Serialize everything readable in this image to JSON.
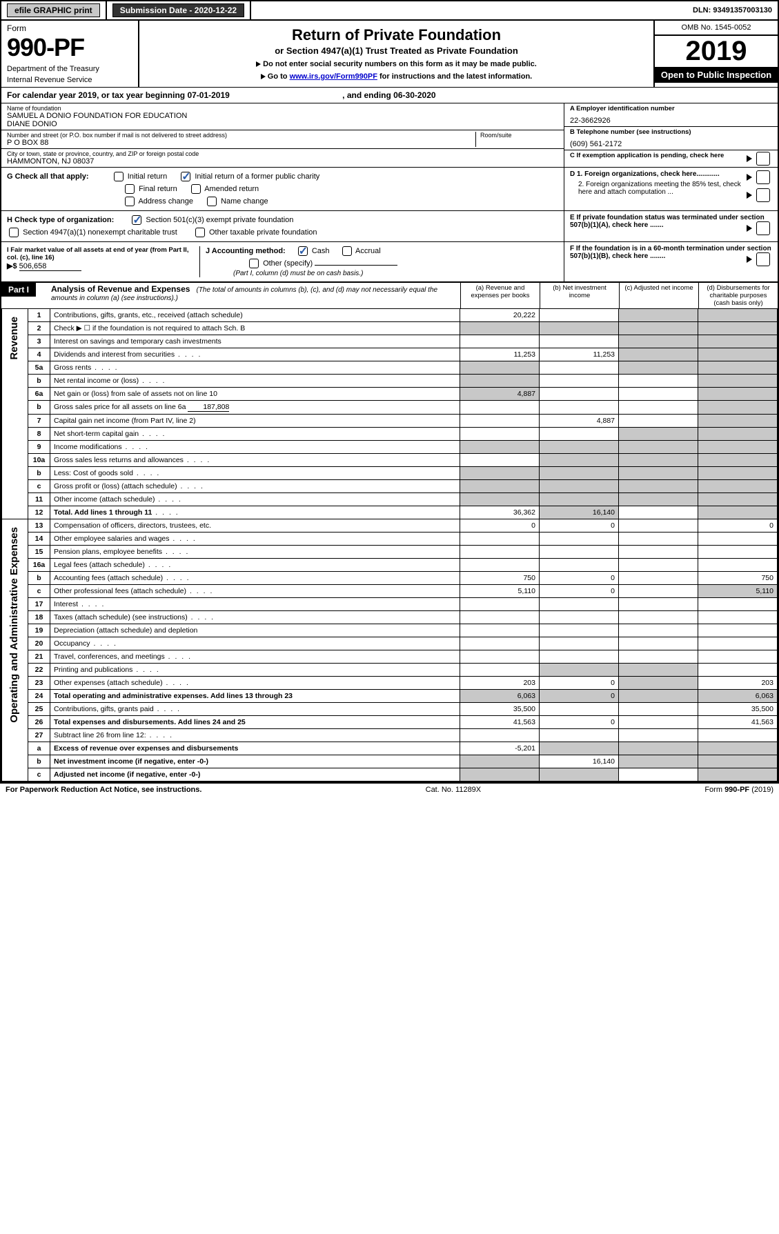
{
  "top": {
    "efile": "efile GRAPHIC print",
    "submission_label": "Submission Date - 2020-12-22",
    "dln": "DLN: 93491357003130"
  },
  "header": {
    "form_label": "Form",
    "form_no": "990-PF",
    "dept1": "Department of the Treasury",
    "dept2": "Internal Revenue Service",
    "title": "Return of Private Foundation",
    "subtitle": "or Section 4947(a)(1) Trust Treated as Private Foundation",
    "instr1": "Do not enter social security numbers on this form as it may be made public.",
    "instr2": "Go to ",
    "instr_link": "www.irs.gov/Form990PF",
    "instr3": " for instructions and the latest information.",
    "omb": "OMB No. 1545-0052",
    "year": "2019",
    "open": "Open to Public Inspection"
  },
  "cal": {
    "text1": "For calendar year 2019, or tax year beginning 07-01-2019",
    "text2": ", and ending 06-30-2020"
  },
  "id": {
    "name_label": "Name of foundation",
    "name": "SAMUEL A DONIO FOUNDATION FOR EDUCATION\nDIANE DONIO",
    "addr_label": "Number and street (or P.O. box number if mail is not delivered to street address)",
    "addr": "P O BOX 88",
    "room_label": "Room/suite",
    "city_label": "City or town, state or province, country, and ZIP or foreign postal code",
    "city": "HAMMONTON, NJ  08037",
    "ein_label": "A Employer identification number",
    "ein": "22-3662926",
    "tel_label": "B Telephone number (see instructions)",
    "tel": "(609) 561-2172",
    "c_label": "C If exemption application is pending, check here"
  },
  "g": {
    "label": "G Check all that apply:",
    "opts": [
      "Initial return",
      "Initial return of a former public charity",
      "Final return",
      "Amended return",
      "Address change",
      "Name change"
    ]
  },
  "h": {
    "label": "H Check type of organization:",
    "o1": "Section 501(c)(3) exempt private foundation",
    "o2": "Section 4947(a)(1) nonexempt charitable trust",
    "o3": "Other taxable private foundation"
  },
  "i": {
    "label": "I Fair market value of all assets at end of year (from Part II, col. (c), line 16)",
    "arrow": "▶$",
    "val": "506,658"
  },
  "j": {
    "label": "J Accounting method:",
    "o1": "Cash",
    "o2": "Accrual",
    "o3": "Other (specify)",
    "note": "(Part I, column (d) must be on cash basis.)"
  },
  "d": {
    "d1": "D 1. Foreign organizations, check here............",
    "d2": "2. Foreign organizations meeting the 85% test, check here and attach computation ...",
    "e": "E  If private foundation status was terminated under section 507(b)(1)(A), check here .......",
    "f": "F  If the foundation is in a 60-month termination under section 507(b)(1)(B), check here ........"
  },
  "part1": {
    "label": "Part I",
    "title": "Analysis of Revenue and Expenses",
    "note": "(The total of amounts in columns (b), (c), and (d) may not necessarily equal the amounts in column (a) (see instructions).)",
    "col_a": "(a) Revenue and expenses per books",
    "col_b": "(b) Net investment income",
    "col_c": "(c) Adjusted net income",
    "col_d": "(d) Disbursements for charitable purposes (cash basis only)"
  },
  "rev_label": "Revenue",
  "exp_label": "Operating and Administrative Expenses",
  "rows": [
    {
      "n": "1",
      "d": "Contributions, gifts, grants, etc., received (attach schedule)",
      "a": "20,222"
    },
    {
      "n": "2",
      "d": "Check ▶ ☐ if the foundation is not required to attach Sch. B"
    },
    {
      "n": "3",
      "d": "Interest on savings and temporary cash investments"
    },
    {
      "n": "4",
      "d": "Dividends and interest from securities",
      "a": "11,253",
      "b": "11,253"
    },
    {
      "n": "5a",
      "d": "Gross rents"
    },
    {
      "n": "b",
      "d": "Net rental income or (loss)"
    },
    {
      "n": "6a",
      "d": "Net gain or (loss) from sale of assets not on line 10",
      "a": "4,887"
    },
    {
      "n": "b",
      "d": "Gross sales price for all assets on line 6a",
      "inline": "187,808"
    },
    {
      "n": "7",
      "d": "Capital gain net income (from Part IV, line 2)",
      "b": "4,887"
    },
    {
      "n": "8",
      "d": "Net short-term capital gain"
    },
    {
      "n": "9",
      "d": "Income modifications"
    },
    {
      "n": "10a",
      "d": "Gross sales less returns and allowances"
    },
    {
      "n": "b",
      "d": "Less: Cost of goods sold"
    },
    {
      "n": "c",
      "d": "Gross profit or (loss) (attach schedule)"
    },
    {
      "n": "11",
      "d": "Other income (attach schedule)"
    },
    {
      "n": "12",
      "d": "Total. Add lines 1 through 11",
      "bold": true,
      "a": "36,362",
      "b": "16,140"
    }
  ],
  "exp": [
    {
      "n": "13",
      "d": "Compensation of officers, directors, trustees, etc.",
      "a": "0",
      "b": "0",
      "dd": "0"
    },
    {
      "n": "14",
      "d": "Other employee salaries and wages"
    },
    {
      "n": "15",
      "d": "Pension plans, employee benefits"
    },
    {
      "n": "16a",
      "d": "Legal fees (attach schedule)"
    },
    {
      "n": "b",
      "d": "Accounting fees (attach schedule)",
      "a": "750",
      "b": "0",
      "dd": "750"
    },
    {
      "n": "c",
      "d": "Other professional fees (attach schedule)",
      "a": "5,110",
      "b": "0",
      "dd": "5,110"
    },
    {
      "n": "17",
      "d": "Interest"
    },
    {
      "n": "18",
      "d": "Taxes (attach schedule) (see instructions)"
    },
    {
      "n": "19",
      "d": "Depreciation (attach schedule) and depletion"
    },
    {
      "n": "20",
      "d": "Occupancy"
    },
    {
      "n": "21",
      "d": "Travel, conferences, and meetings"
    },
    {
      "n": "22",
      "d": "Printing and publications"
    },
    {
      "n": "23",
      "d": "Other expenses (attach schedule)",
      "a": "203",
      "b": "0",
      "dd": "203"
    },
    {
      "n": "24",
      "d": "Total operating and administrative expenses. Add lines 13 through 23",
      "bold": true,
      "a": "6,063",
      "b": "0",
      "dd": "6,063"
    },
    {
      "n": "25",
      "d": "Contributions, gifts, grants paid",
      "a": "35,500",
      "dd": "35,500"
    },
    {
      "n": "26",
      "d": "Total expenses and disbursements. Add lines 24 and 25",
      "bold": true,
      "a": "41,563",
      "b": "0",
      "dd": "41,563"
    },
    {
      "n": "27",
      "d": "Subtract line 26 from line 12:"
    },
    {
      "n": "a",
      "d": "Excess of revenue over expenses and disbursements",
      "bold": true,
      "a": "-5,201"
    },
    {
      "n": "b",
      "d": "Net investment income (if negative, enter -0-)",
      "bold": true,
      "b": "16,140"
    },
    {
      "n": "c",
      "d": "Adjusted net income (if negative, enter -0-)",
      "bold": true
    }
  ],
  "footer": {
    "pra": "For Paperwork Reduction Act Notice, see instructions.",
    "cat": "Cat. No. 11289X",
    "form": "Form 990-PF (2019)"
  },
  "gray_cells": {
    "rev": {
      "1": [
        "c",
        "d"
      ],
      "2": [
        "a",
        "b",
        "c",
        "d"
      ],
      "3": [
        "c",
        "d"
      ],
      "4": [
        "c",
        "d"
      ],
      "5a": [
        "c",
        "d"
      ],
      "b_5": [
        "a",
        "b",
        "c",
        "d"
      ],
      "6a": [
        "b",
        "c",
        "d"
      ],
      "b_6": [
        "a",
        "b",
        "c",
        "d"
      ],
      "7": [
        "a",
        "c",
        "d"
      ],
      "8": [
        "a",
        "d"
      ],
      "9": [
        "a",
        "d"
      ],
      "10a": [
        "a",
        "b",
        "c",
        "d"
      ],
      "b_10": [
        "a",
        "b",
        "c",
        "d"
      ],
      "c_10": [
        "b",
        "d"
      ],
      "11": [
        "d"
      ],
      "12": [
        "d"
      ]
    },
    "exp": {
      "13": [],
      "14": [],
      "15": [],
      "16a": [],
      "b": [],
      "c": [],
      "17": [],
      "18": [],
      "19": [
        "d"
      ],
      "20": [],
      "21": [],
      "22": [],
      "23": [],
      "24": [],
      "25": [
        "b",
        "c"
      ],
      "26": [
        "c"
      ],
      "27": [
        "a",
        "b",
        "c",
        "d"
      ],
      "a_27": [
        "b",
        "c",
        "d"
      ],
      "b_27": [
        "a",
        "c",
        "d"
      ],
      "c_27": [
        "a",
        "b",
        "d"
      ]
    }
  }
}
